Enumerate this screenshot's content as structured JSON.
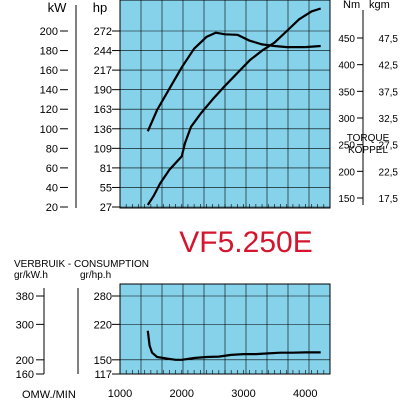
{
  "model_title": "VF5.250E",
  "chart_data": [
    {
      "type": "line",
      "x_range": [
        1000,
        4400
      ],
      "kw_hp": {
        "unit_kw": "kW",
        "unit_hp": "hp",
        "kw_ticks": [
          20,
          40,
          60,
          80,
          100,
          120,
          140,
          160,
          180,
          200
        ],
        "hp_ticks": [
          27,
          55,
          81,
          109,
          136,
          163,
          190,
          217,
          244,
          272
        ],
        "ylim_kw": [
          20,
          210
        ]
      },
      "torque": {
        "unit_nm": "Nm",
        "unit_kgm": "kgm",
        "nm_ticks": [
          150,
          200,
          250,
          300,
          350,
          400,
          450
        ],
        "kgm_ticks": [
          "17,5",
          "22,5",
          "27,5",
          "32,5",
          "37,5",
          "42,5",
          "47,5"
        ],
        "caption_line1": "TORQUE",
        "caption_line2": "KOPPEL",
        "ylim_nm": [
          150,
          480
        ]
      },
      "series": [
        {
          "name": "",
          "axis": "torque_nm",
          "x": [
            1450,
            1600,
            1800,
            2000,
            2200,
            2400,
            2550,
            2700,
            2900,
            3100,
            3300,
            3500,
            3700,
            3900,
            4000,
            4250
          ],
          "y": [
            275,
            315,
            355,
            395,
            430,
            452,
            460,
            457,
            456,
            445,
            438,
            435,
            433,
            433,
            433,
            435
          ]
        },
        {
          "name": "",
          "axis": "power_kw",
          "x": [
            1450,
            1550,
            1650,
            1800,
            1900,
            2000,
            2050,
            2150,
            2300,
            2500,
            2700,
            2900,
            3100,
            3300,
            3500,
            3700,
            3900,
            4100,
            4250
          ],
          "y": [
            22,
            32,
            44,
            58,
            65,
            72,
            85,
            102,
            115,
            130,
            144,
            157,
            170,
            180,
            188,
            200,
            212,
            220,
            223
          ]
        }
      ]
    },
    {
      "type": "line",
      "title": "VERBRUIK - CONSUMPTION",
      "unit_kwh": "gr/kW.h",
      "unit_hph": "gr/hp.h",
      "kwh_ticks": [
        160,
        200,
        300,
        380
      ],
      "hph_ticks": [
        117,
        150,
        220,
        280
      ],
      "ylim": [
        160,
        385
      ],
      "xlabel": "OMW./MIN",
      "x_ticks": [
        1000,
        2000,
        3000,
        4000
      ],
      "xlim": [
        1000,
        4400
      ],
      "series": [
        {
          "name": "",
          "x": [
            1450,
            1480,
            1520,
            1600,
            1750,
            1900,
            2000,
            2200,
            2400,
            2600,
            2800,
            3000,
            3200,
            3400,
            3600,
            3800,
            4000,
            4250
          ],
          "y": [
            282,
            240,
            220,
            208,
            204,
            200,
            200,
            205,
            208,
            209,
            214,
            216,
            216,
            218,
            220,
            220,
            221,
            221
          ]
        }
      ]
    }
  ]
}
